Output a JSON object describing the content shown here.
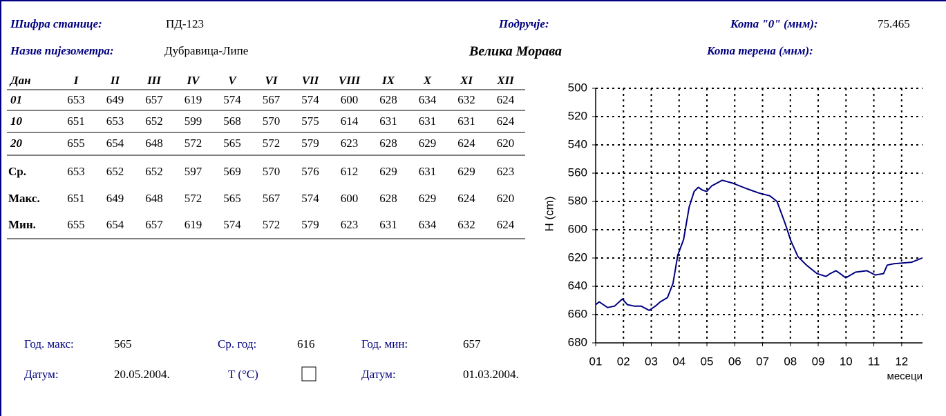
{
  "header": {
    "station_code_label": "Шифра станице:",
    "station_code": "ПД-123",
    "area_label": "Подручје:",
    "zero_label": "Кота \"0\" (мнм):",
    "zero": "75.465",
    "name_label": "Назив пијезометра:",
    "name": "Дубравица-Липе",
    "area": "Велика Морава",
    "terrain_label": "Кота терена (мнм):"
  },
  "table": {
    "columns": [
      "Дан",
      "I",
      "II",
      "III",
      "IV",
      "V",
      "VI",
      "VII",
      "VIII",
      "IX",
      "X",
      "XI",
      "XII"
    ],
    "rows": [
      [
        "01",
        "653",
        "649",
        "657",
        "619",
        "574",
        "567",
        "574",
        "600",
        "628",
        "634",
        "632",
        "624"
      ],
      [
        "10",
        "651",
        "653",
        "652",
        "599",
        "568",
        "570",
        "575",
        "614",
        "631",
        "631",
        "631",
        "624"
      ],
      [
        "20",
        "655",
        "654",
        "648",
        "572",
        "565",
        "572",
        "579",
        "623",
        "628",
        "629",
        "624",
        "620"
      ]
    ],
    "stats": [
      [
        "Ср.",
        "653",
        "652",
        "652",
        "597",
        "569",
        "570",
        "576",
        "612",
        "629",
        "631",
        "629",
        "623"
      ],
      [
        "Макс.",
        "651",
        "649",
        "648",
        "572",
        "565",
        "567",
        "574",
        "600",
        "628",
        "629",
        "624",
        "620"
      ],
      [
        "Мин.",
        "655",
        "654",
        "657",
        "619",
        "574",
        "572",
        "579",
        "623",
        "631",
        "634",
        "632",
        "624"
      ]
    ]
  },
  "summary": {
    "year_max_label": "Год. макс:",
    "year_max": "565",
    "year_avg_label": "Ср. год:",
    "year_avg": "616",
    "year_min_label": "Год. мин:",
    "year_min": "657",
    "date_max_label": "Датум:",
    "date_max": "20.05.2004.",
    "temp_label": "T (°C)",
    "date_min_label": "Датум:",
    "date_min": "01.03.2004."
  },
  "chart_data": {
    "type": "line",
    "ylabel": "H (cm)",
    "xlabel": "месеци",
    "ylim": [
      500,
      680
    ],
    "yticks": [
      500,
      520,
      540,
      560,
      580,
      600,
      620,
      640,
      660,
      680
    ],
    "y_reversed": true,
    "xlim": [
      1,
      12.75
    ],
    "xticks": [
      {
        "value": 1,
        "label": "01"
      },
      {
        "value": 2,
        "label": "02"
      },
      {
        "value": 3,
        "label": "03"
      },
      {
        "value": 4,
        "label": "04"
      },
      {
        "value": 5,
        "label": "05"
      },
      {
        "value": 6,
        "label": "06"
      },
      {
        "value": 7,
        "label": "07"
      },
      {
        "value": 8,
        "label": "08"
      },
      {
        "value": 9,
        "label": "09"
      },
      {
        "value": 10,
        "label": "10"
      },
      {
        "value": 11,
        "label": "11"
      },
      {
        "value": 12,
        "label": "12"
      }
    ],
    "grid": true,
    "x": [
      1.0,
      1.13,
      1.43,
      1.68,
      1.96,
      2.14,
      2.39,
      2.64,
      2.92,
      3.15,
      3.32,
      3.58,
      3.78,
      3.95,
      4.16,
      4.36,
      4.54,
      4.69,
      4.84,
      4.99,
      5.17,
      5.55,
      5.92,
      6.43,
      6.86,
      7.26,
      7.52,
      7.82,
      8.02,
      8.27,
      8.58,
      8.96,
      9.28,
      9.43,
      9.64,
      9.79,
      9.99,
      10.34,
      10.75,
      11.05,
      11.35,
      11.48,
      11.73,
      12.36,
      12.74
    ],
    "series": [
      {
        "color": "#000080",
        "values": [
          653,
          651,
          655,
          654,
          649,
          653,
          654,
          654,
          657,
          654,
          651,
          648,
          638,
          618,
          607,
          584,
          573,
          570,
          572,
          573,
          569,
          565,
          567,
          571,
          574,
          576,
          580,
          596,
          608,
          619,
          625,
          631,
          633,
          631,
          629,
          631,
          634,
          630,
          629,
          632,
          631,
          625,
          624,
          623,
          620
        ]
      }
    ]
  }
}
